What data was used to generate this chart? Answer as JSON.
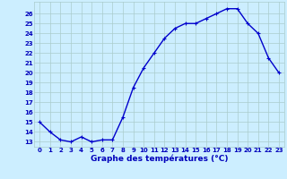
{
  "hours": [
    0,
    1,
    2,
    3,
    4,
    5,
    6,
    7,
    8,
    9,
    10,
    11,
    12,
    13,
    14,
    15,
    16,
    17,
    18,
    19,
    20,
    21,
    22,
    23
  ],
  "temps": [
    15,
    14,
    13.2,
    13.0,
    13.5,
    13.0,
    13.2,
    13.2,
    15.5,
    18.5,
    20.5,
    22.0,
    23.5,
    24.5,
    25.0,
    25.0,
    25.5,
    26.0,
    26.5,
    26.5,
    25.0,
    24.0,
    21.5,
    20.0
  ],
  "line_color": "#0000cc",
  "marker": "+",
  "marker_size": 3.5,
  "marker_lw": 0.8,
  "line_width": 1.0,
  "bg_color": "#cceeff",
  "grid_color": "#aacccc",
  "xlabel": "Graphe des températures (°C)",
  "yticks": [
    13,
    14,
    15,
    16,
    17,
    18,
    19,
    20,
    21,
    22,
    23,
    24,
    25,
    26
  ],
  "ylim": [
    12.5,
    27.2
  ],
  "xlim": [
    -0.5,
    23.5
  ],
  "tick_label_color": "#0000bb",
  "tick_fontsize": 5.0,
  "xlabel_fontsize": 6.5,
  "xlabel_color": "#0000bb",
  "xlabel_bar_color": "#0000bb"
}
